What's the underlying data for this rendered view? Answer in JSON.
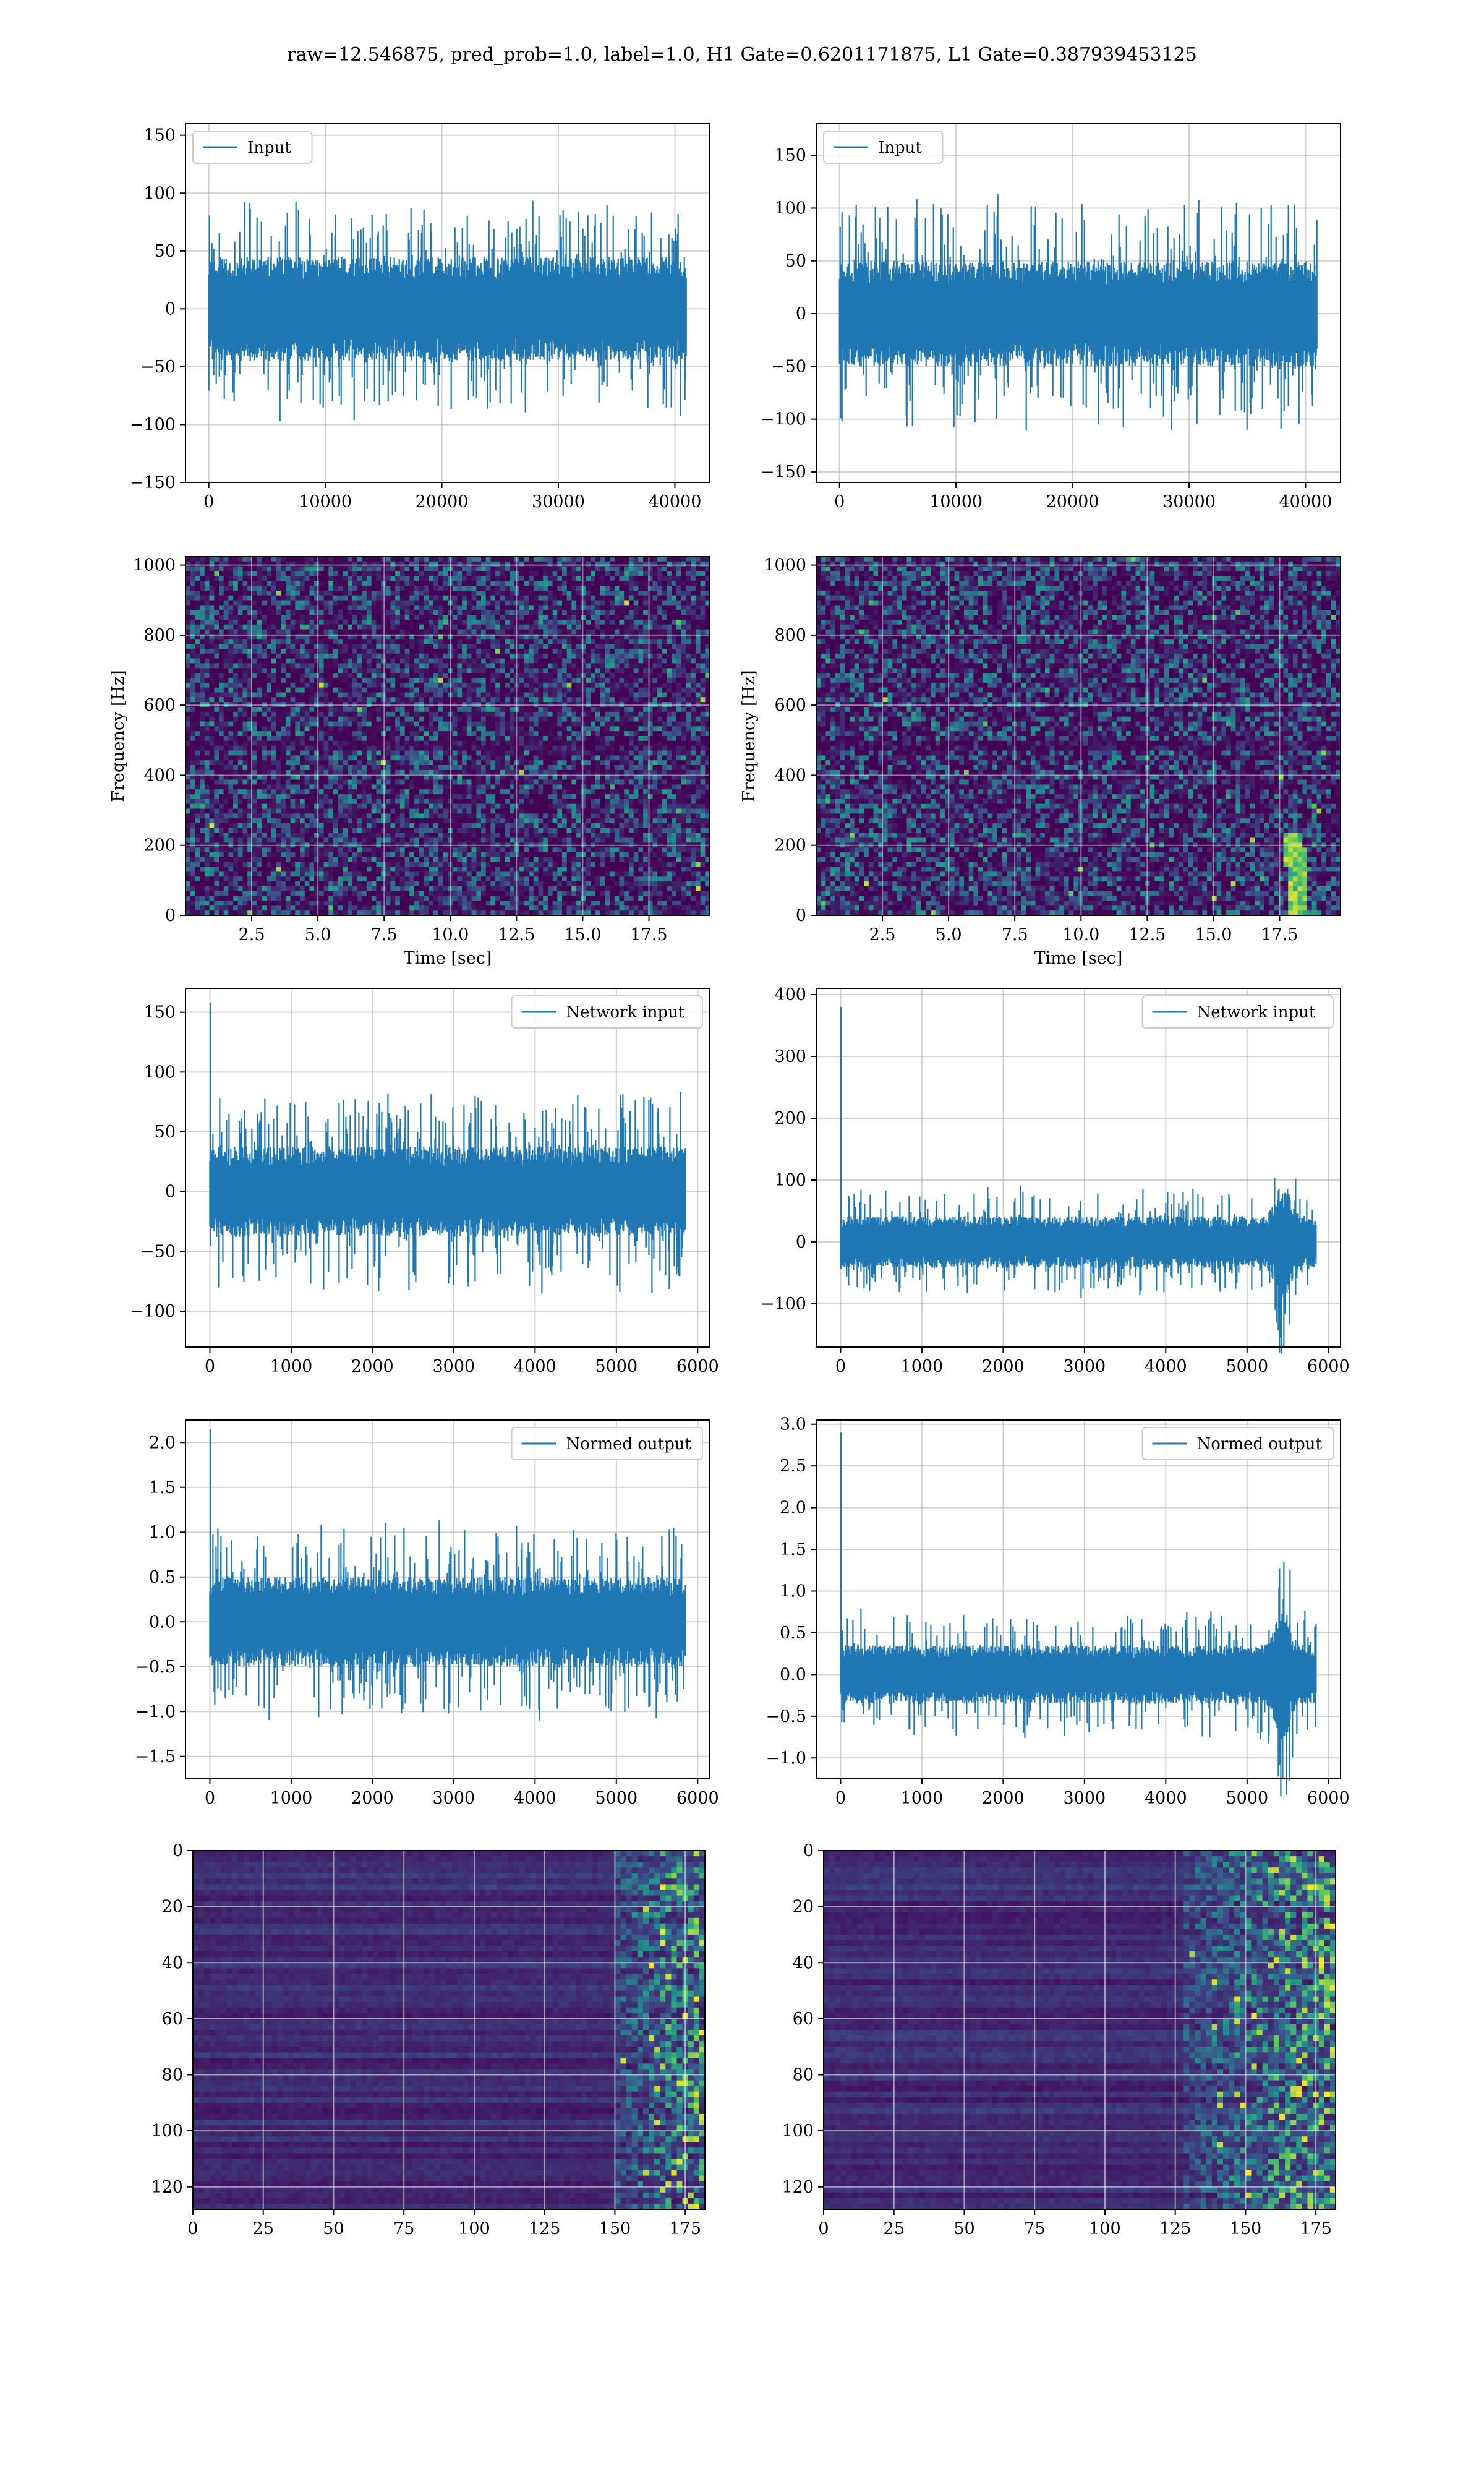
{
  "figure": {
    "title": "raw=12.546875, pred_prob=1.0, label=1.0, H1 Gate=0.6201171875, L1 Gate=0.387939453125"
  },
  "colors": {
    "line": "#1f77b4",
    "grid": "#b0b0b0",
    "viridis_low": "#440154",
    "viridis_mid": "#21918c",
    "viridis_high": "#fde725"
  },
  "chart_data": [
    {
      "id": "input-h1",
      "type": "line",
      "series": [
        {
          "name": "Input",
          "values_description_level": 25,
          "n": 40960
        }
      ],
      "xlim": [
        -2000,
        43000
      ],
      "ylim": [
        -150,
        160
      ],
      "xticks": [
        0,
        10000,
        20000,
        30000,
        40000
      ],
      "yticks": [
        -150,
        -100,
        -50,
        0,
        50,
        100,
        150
      ],
      "legend": "top-left",
      "grid": true,
      "xlabel": "",
      "ylabel": ""
    },
    {
      "id": "input-l1",
      "type": "line",
      "series": [
        {
          "name": "Input",
          "n": 40960
        }
      ],
      "xlim": [
        -2000,
        43000
      ],
      "ylim": [
        -160,
        180
      ],
      "xticks": [
        0,
        10000,
        20000,
        30000,
        40000
      ],
      "yticks": [
        -150,
        -100,
        -50,
        0,
        50,
        100,
        150
      ],
      "legend": "top-left",
      "grid": true,
      "xlabel": "",
      "ylabel": ""
    },
    {
      "id": "spec-h1",
      "type": "heatmap",
      "xlim": [
        0,
        19.8
      ],
      "ylim": [
        0,
        1024
      ],
      "xticks": [
        2.5,
        5.0,
        7.5,
        10.0,
        12.5,
        15.0,
        17.5
      ],
      "yticks": [
        0,
        200,
        400,
        600,
        800,
        1000
      ],
      "xlabel": "Time [sec]",
      "ylabel": "Frequency [Hz]",
      "grid": true
    },
    {
      "id": "spec-l1",
      "type": "heatmap",
      "xlim": [
        0,
        19.8
      ],
      "ylim": [
        0,
        1024
      ],
      "xticks": [
        2.5,
        5.0,
        7.5,
        10.0,
        12.5,
        15.0,
        17.5
      ],
      "yticks": [
        0,
        200,
        400,
        600,
        800,
        1000
      ],
      "xlabel": "Time [sec]",
      "ylabel": "Frequency [Hz]",
      "grid": true,
      "annotations": [
        "chirp near 18 sec, up to about 250 Hz"
      ]
    },
    {
      "id": "netin-h1",
      "type": "line",
      "series": [
        {
          "name": "Network input",
          "n": 5850
        }
      ],
      "xlim": [
        -300,
        6150
      ],
      "ylim": [
        -130,
        170
      ],
      "xticks": [
        0,
        1000,
        2000,
        3000,
        4000,
        5000,
        6000
      ],
      "yticks": [
        -100,
        -50,
        0,
        50,
        100,
        150
      ],
      "legend": "top-right",
      "grid": true
    },
    {
      "id": "netin-l1",
      "type": "line",
      "series": [
        {
          "name": "Network input",
          "n": 5850
        }
      ],
      "xlim": [
        -300,
        6150
      ],
      "ylim": [
        -170,
        410
      ],
      "xticks": [
        0,
        1000,
        2000,
        3000,
        4000,
        5000,
        6000
      ],
      "yticks": [
        -100,
        0,
        100,
        200,
        300,
        400
      ],
      "legend": "top-right",
      "grid": true
    },
    {
      "id": "norm-h1",
      "type": "line",
      "series": [
        {
          "name": "Normed output",
          "n": 5850
        }
      ],
      "xlim": [
        -300,
        6150
      ],
      "ylim": [
        -1.75,
        2.25
      ],
      "xticks": [
        0,
        1000,
        2000,
        3000,
        4000,
        5000,
        6000
      ],
      "yticks": [
        -1.5,
        -1.0,
        -0.5,
        0.0,
        0.5,
        1.0,
        1.5,
        2.0
      ],
      "legend": "top-right",
      "grid": true
    },
    {
      "id": "norm-l1",
      "type": "line",
      "series": [
        {
          "name": "Normed output",
          "n": 5850
        }
      ],
      "xlim": [
        -300,
        6150
      ],
      "ylim": [
        -1.25,
        3.05
      ],
      "xticks": [
        0,
        1000,
        2000,
        3000,
        4000,
        5000,
        6000
      ],
      "yticks": [
        -1.0,
        -0.5,
        0.0,
        0.5,
        1.0,
        1.5,
        2.0,
        2.5,
        3.0
      ],
      "legend": "top-right",
      "grid": true
    },
    {
      "id": "feat-h1",
      "type": "heatmap",
      "xlim": [
        0,
        182
      ],
      "ylim": [
        128,
        0
      ],
      "xticks": [
        0,
        25,
        50,
        75,
        100,
        125,
        150,
        175
      ],
      "yticks": [
        0,
        20,
        40,
        60,
        80,
        100,
        120
      ],
      "grid": true
    },
    {
      "id": "feat-l1",
      "type": "heatmap",
      "xlim": [
        0,
        182
      ],
      "ylim": [
        128,
        0
      ],
      "xticks": [
        0,
        25,
        50,
        75,
        100,
        125,
        150,
        175
      ],
      "yticks": [
        0,
        20,
        40,
        60,
        80,
        100,
        120
      ],
      "grid": true
    }
  ]
}
